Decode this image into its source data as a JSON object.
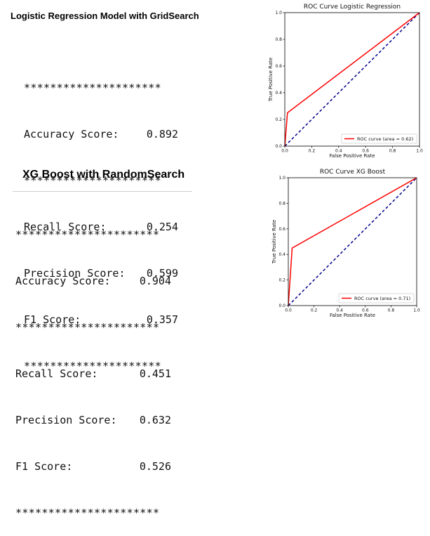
{
  "left": {
    "logistic": {
      "heading": "Logistic Regression Model with GridSearch",
      "stars": "*********************",
      "rows": [
        {
          "label": "Accuracy Score:",
          "value": "0.892"
        },
        {
          "label": "Recall Score:",
          "value": "0.254"
        },
        {
          "label": "Precision Score:",
          "value": "0.599"
        },
        {
          "label": "F1 Score:",
          "value": "0.357"
        }
      ]
    },
    "xgboost": {
      "heading": "XG Boost with RandomSearch",
      "stars": "**********************",
      "rows": [
        {
          "label": "Accuracy Score:",
          "value": "0.904"
        },
        {
          "label": "Recall Score:",
          "value": "0.451"
        },
        {
          "label": "Precision Score:",
          "value": "0.632"
        },
        {
          "label": "F1 Score:",
          "value": "0.526"
        }
      ]
    }
  },
  "colors": {
    "roc": "#ff0000",
    "diagonal": "#00008b"
  },
  "chart_data": [
    {
      "type": "line",
      "title": "ROC Curve Logistic Regression",
      "xlabel": "False Positive Rate",
      "ylabel": "True Positive Rate",
      "xlim": [
        0.0,
        1.0
      ],
      "ylim": [
        0.0,
        1.0
      ],
      "xticks": [
        "0.0",
        "0.2",
        "0.4",
        "0.6",
        "0.8",
        "1.0"
      ],
      "yticks": [
        "0.0",
        "0.2",
        "0.4",
        "0.6",
        "0.8",
        "1.0"
      ],
      "grid": false,
      "legend_position": "lower-right",
      "series": [
        {
          "name": "ROC curve (area = 0.62)",
          "x": [
            0.0,
            0.02,
            1.0
          ],
          "y": [
            0.0,
            0.25,
            1.0
          ]
        },
        {
          "x": [
            0.0,
            1.0
          ],
          "y": [
            0.0,
            1.0
          ]
        }
      ]
    },
    {
      "type": "line",
      "title": "ROC Curve XG Boost",
      "xlabel": "False Positive Rate",
      "ylabel": "True Positive Rate",
      "xlim": [
        0.0,
        1.0
      ],
      "ylim": [
        0.0,
        1.0
      ],
      "xticks": [
        "0.0",
        "0.2",
        "0.4",
        "0.6",
        "0.8",
        "1.0"
      ],
      "yticks": [
        "0.0",
        "0.2",
        "0.4",
        "0.6",
        "0.8",
        "1.0"
      ],
      "grid": false,
      "legend_position": "lower-right",
      "series": [
        {
          "name": "ROC curve (area = 0.71)",
          "x": [
            0.0,
            0.03,
            1.0
          ],
          "y": [
            0.0,
            0.45,
            1.0
          ]
        },
        {
          "x": [
            0.0,
            1.0
          ],
          "y": [
            0.0,
            1.0
          ]
        }
      ]
    }
  ]
}
